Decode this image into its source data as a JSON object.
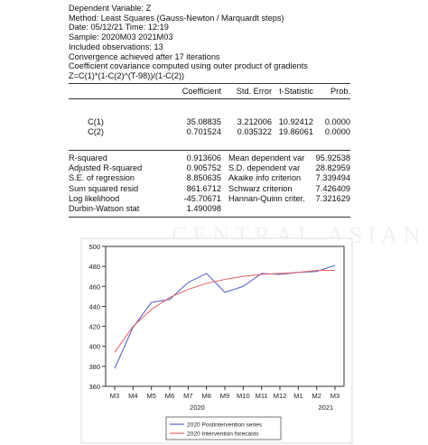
{
  "header": [
    "Dependent Variable: Z",
    "Method: Least Squares (Gauss-Newton / Marquardt steps)",
    "Date: 05/12/21   Time: 12:19",
    "Sample: 2020M03 2021M03",
    "Included observations: 13",
    "Convergence achieved after 17 iterations",
    "Coefficient covariance computed using outer product of gradients",
    "Z=C(1)*(1-C(2)^(T-98))/(1-C(2))"
  ],
  "coef_table": {
    "columns": [
      "Coefficient",
      "Std. Error",
      "t-Statistic",
      "Prob."
    ],
    "rows": [
      {
        "name": "C(1)",
        "values": [
          "35.08835",
          "3.212006",
          "10.92412",
          "0.0000"
        ]
      },
      {
        "name": "C(2)",
        "values": [
          "0.701524",
          "0.035322",
          "19.86061",
          "0.0000"
        ]
      }
    ]
  },
  "stats": [
    {
      "left_label": "R-squared",
      "left_value": "0.913606",
      "right_label": "Mean dependent var",
      "right_value": "95.92538"
    },
    {
      "left_label": "Adjusted R-squared",
      "left_value": "0.905752",
      "right_label": "S.D. dependent var",
      "right_value": "28.82959"
    },
    {
      "left_label": "S.E. of regression",
      "left_value": "8.850635",
      "right_label": "Akaike info criterion",
      "right_value": "7.339494"
    },
    {
      "left_label": "Sum squared resid",
      "left_value": "861.6712",
      "right_label": "Schwarz criterion",
      "right_value": "7.426409"
    },
    {
      "left_label": "Log likelihood",
      "left_value": "-45.70671",
      "right_label": "Hannan-Quinn criter.",
      "right_value": "7.321629"
    },
    {
      "left_label": "Durbin-Watson stat",
      "left_value": "1.490098",
      "right_label": "",
      "right_value": ""
    }
  ],
  "watermark": "CENTRAL ASIAN",
  "chart_data": {
    "type": "line",
    "categories": [
      "M3",
      "M4",
      "M5",
      "M6",
      "M7",
      "M8",
      "M9",
      "M10",
      "M11",
      "M12",
      "M1",
      "M2",
      "M3"
    ],
    "year_labels": [
      {
        "label": "2020",
        "index": 4.5
      },
      {
        "label": "2021",
        "index": 11.5
      }
    ],
    "ylim": [
      360,
      500
    ],
    "yticks": [
      360,
      380,
      400,
      420,
      440,
      460,
      480,
      500
    ],
    "series": [
      {
        "name": "2020 Postintervention series",
        "color": "#5b63c9",
        "values": [
          378,
          419,
          444,
          447,
          464,
          473,
          454,
          460,
          473,
          472,
          474,
          475,
          481
        ]
      },
      {
        "name": "2020 Intervention forecasts",
        "color": "#e46a6a",
        "values": [
          394,
          420,
          437,
          449,
          457,
          463,
          467,
          470,
          472,
          473,
          474,
          476,
          476
        ]
      }
    ]
  }
}
